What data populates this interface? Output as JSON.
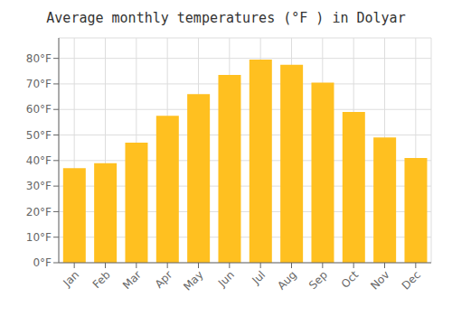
{
  "chart_data": {
    "type": "bar",
    "title": "Average monthly temperatures (°F ) in Dolyar",
    "categories": [
      "Jan",
      "Feb",
      "Mar",
      "Apr",
      "May",
      "Jun",
      "Jul",
      "Aug",
      "Sep",
      "Oct",
      "Nov",
      "Dec"
    ],
    "values": [
      37,
      39,
      47,
      57.5,
      66,
      73.5,
      79.5,
      77.5,
      70.5,
      59,
      49,
      41
    ],
    "color": "#FFC020",
    "ylim": [
      0,
      88
    ],
    "yticks": [
      {
        "value": 0,
        "label": "0°F"
      },
      {
        "value": 10,
        "label": "10°F"
      },
      {
        "value": 20,
        "label": "20°F"
      },
      {
        "value": 30,
        "label": "30°F"
      },
      {
        "value": 40,
        "label": "40°F"
      },
      {
        "value": 50,
        "label": "50°F"
      },
      {
        "value": 60,
        "label": "60°F"
      },
      {
        "value": 70,
        "label": "70°F"
      },
      {
        "value": 80,
        "label": "80°F"
      }
    ],
    "grid": true
  }
}
